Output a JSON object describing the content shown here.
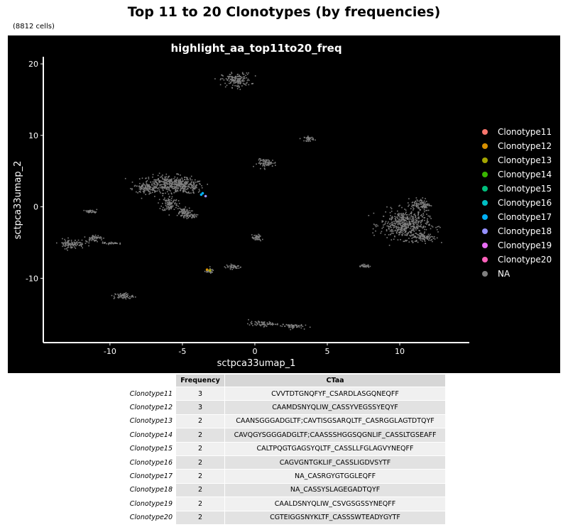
{
  "title": "Top 11 to 20 Clonotypes (by frequencies)",
  "subtitle": "(8812 cells)",
  "chart_data": {
    "type": "scatter",
    "title": "highlight_aa_top11to20_freq",
    "xlabel": "sctpca33umap_1",
    "ylabel": "sctpca33umap_2",
    "xlim": [
      -14.6,
      14.8
    ],
    "ylim": [
      -19,
      21
    ],
    "xticks": [
      -10,
      -5,
      0,
      5,
      10
    ],
    "yticks": [
      -10,
      0,
      10,
      20
    ],
    "background": "#000000",
    "grid": false,
    "legend_position": "right",
    "point_color_na": "#7f7f7f",
    "clusters": [
      {
        "x": -6.1,
        "y": 3.4,
        "sx": 1.5,
        "sy": 1.0
      },
      {
        "x": -4.9,
        "y": 2.9,
        "sx": 1.2,
        "sy": 0.9
      },
      {
        "x": -7.6,
        "y": 2.6,
        "sx": 0.8,
        "sy": 0.6
      },
      {
        "x": -5.9,
        "y": 0.5,
        "sx": 0.5,
        "sy": 1.0
      },
      {
        "x": -5.0,
        "y": -0.6,
        "sx": 0.5,
        "sy": 0.5
      },
      {
        "x": -4.6,
        "y": -1.2,
        "sx": 0.5,
        "sy": 0.3
      },
      {
        "x": -1.3,
        "y": 17.8,
        "sx": 0.9,
        "sy": 0.9
      },
      {
        "x": 0.8,
        "y": 6.2,
        "sx": 0.6,
        "sy": 0.5
      },
      {
        "x": 3.7,
        "y": 9.6,
        "sx": 0.3,
        "sy": 0.3
      },
      {
        "x": 10.3,
        "y": -2.4,
        "sx": 1.5,
        "sy": 1.8
      },
      {
        "x": 11.4,
        "y": 0.4,
        "sx": 0.6,
        "sy": 0.8
      },
      {
        "x": 11.6,
        "y": -4.2,
        "sx": 0.8,
        "sy": 0.6
      },
      {
        "x": -12.7,
        "y": -5.1,
        "sx": 0.8,
        "sy": 0.6
      },
      {
        "x": -11.2,
        "y": -4.3,
        "sx": 0.5,
        "sy": 0.4
      },
      {
        "x": -11.3,
        "y": -0.6,
        "sx": 0.4,
        "sy": 0.2
      },
      {
        "x": -9.1,
        "y": -12.4,
        "sx": 0.6,
        "sy": 0.4
      },
      {
        "x": 0.5,
        "y": -16.3,
        "sx": 0.9,
        "sy": 0.3
      },
      {
        "x": 2.5,
        "y": -16.6,
        "sx": 0.7,
        "sy": 0.3
      },
      {
        "x": -1.5,
        "y": -8.3,
        "sx": 0.5,
        "sy": 0.3
      },
      {
        "x": -3.2,
        "y": -8.9,
        "sx": 0.3,
        "sy": 0.3
      },
      {
        "x": 0.1,
        "y": -4.3,
        "sx": 0.3,
        "sy": 0.4
      },
      {
        "x": -10.0,
        "y": -5.0,
        "sx": 0.5,
        "sy": 0.15
      },
      {
        "x": 7.5,
        "y": -8.2,
        "sx": 0.35,
        "sy": 0.2
      }
    ],
    "highlighted_points": [
      {
        "label": "Clonotype17",
        "x": -3.7,
        "y": 1.7
      },
      {
        "label": "Clonotype17",
        "x": -3.6,
        "y": 1.9
      },
      {
        "label": "Clonotype18",
        "x": -3.4,
        "y": 1.5
      },
      {
        "label": "Clonotype12",
        "x": -3.3,
        "y": -8.8
      },
      {
        "label": "Clonotype13",
        "x": -3.1,
        "y": -8.9
      }
    ],
    "series": [
      {
        "name": "Clonotype11",
        "color": "#F8766D"
      },
      {
        "name": "Clonotype12",
        "color": "#D89000"
      },
      {
        "name": "Clonotype13",
        "color": "#A3A500"
      },
      {
        "name": "Clonotype14",
        "color": "#39B600"
      },
      {
        "name": "Clonotype15",
        "color": "#00BF7D"
      },
      {
        "name": "Clonotype16",
        "color": "#00BFC4"
      },
      {
        "name": "Clonotype17",
        "color": "#00B0F6"
      },
      {
        "name": "Clonotype18",
        "color": "#9590FF"
      },
      {
        "name": "Clonotype19",
        "color": "#E76BF3"
      },
      {
        "name": "Clonotype20",
        "color": "#FF62BC"
      },
      {
        "name": "NA",
        "color": "#7F7F7F"
      }
    ]
  },
  "table": {
    "headers": [
      "Frequency",
      "CTaa"
    ],
    "rows": [
      {
        "name": "Clonotype11",
        "frequency": "3",
        "ctaa": "CVVTDTGNQFYF_CSARDLASGQNEQFF"
      },
      {
        "name": "Clonotype12",
        "frequency": "3",
        "ctaa": "CAAMDSNYQLIW_CASSYVEGSSYEQYF"
      },
      {
        "name": "Clonotype13",
        "frequency": "2",
        "ctaa": "CAANSGGGADGLTF;CAVTISGSARQLTF_CASRGGLAGTDTQYF"
      },
      {
        "name": "Clonotype14",
        "frequency": "2",
        "ctaa": "CAVQGYSGGGADGLTF;CAASSSHGGSQGNLIF_CASSLTGSEAFF"
      },
      {
        "name": "Clonotype15",
        "frequency": "2",
        "ctaa": "CALTPQGTGAGSYQLTF_CASSLLFGLAGVYNEQFF"
      },
      {
        "name": "Clonotype16",
        "frequency": "2",
        "ctaa": "CAGVGNTGKLIF_CASSLIGDVSYTF"
      },
      {
        "name": "Clonotype17",
        "frequency": "2",
        "ctaa": "NA_CASRGYGTGGLEQFF"
      },
      {
        "name": "Clonotype18",
        "frequency": "2",
        "ctaa": "NA_CASSYSLAGEGADTQYF"
      },
      {
        "name": "Clonotype19",
        "frequency": "2",
        "ctaa": "CAALDSNYQLIW_CSVGSGSSYNEQFF"
      },
      {
        "name": "Clonotype20",
        "frequency": "2",
        "ctaa": "CGTEIGGSNYKLTF_CASSSWTEADYGYTF"
      }
    ]
  }
}
